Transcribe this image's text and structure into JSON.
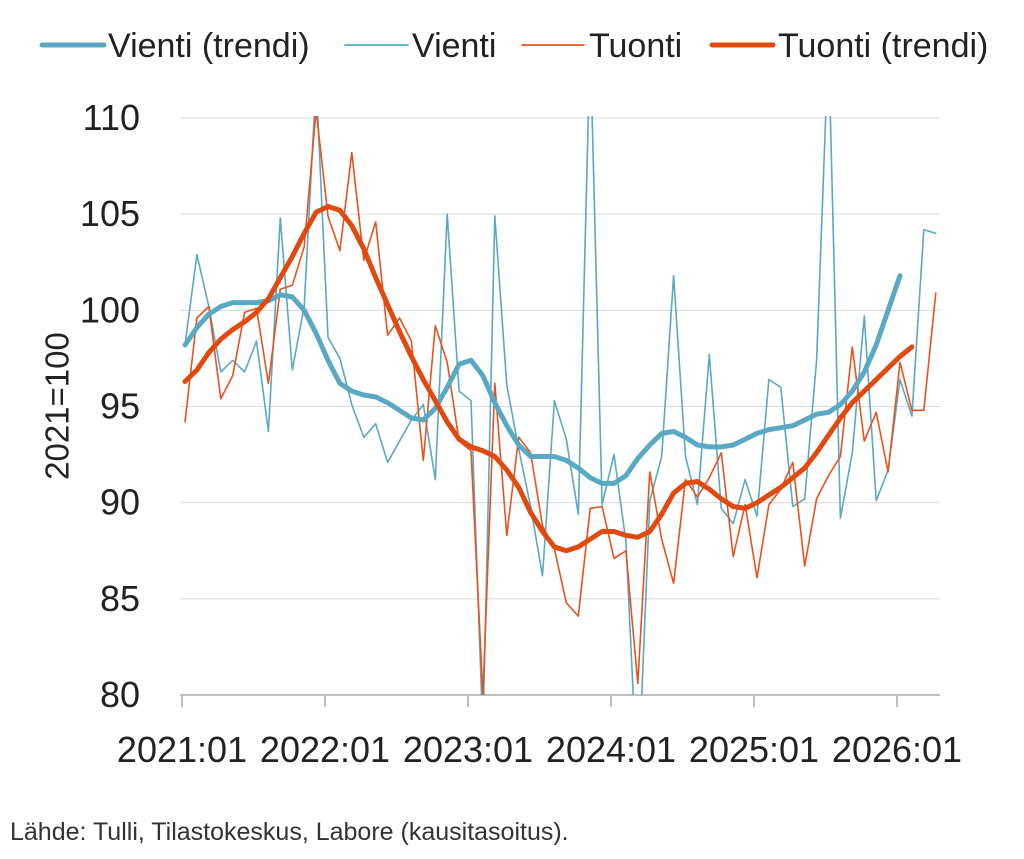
{
  "chart_data": {
    "type": "line",
    "title": "",
    "xlabel": "",
    "ylabel": "2021=100",
    "ylim": [
      80,
      110
    ],
    "y_ticks": [
      "80",
      "85",
      "90",
      "95",
      "100",
      "105",
      "110"
    ],
    "x_ticks": [
      "2021:01",
      "2022:01",
      "2023:01",
      "2024:01",
      "2025:01",
      "2026:01"
    ],
    "grid": "horizontal",
    "legend_position": "top",
    "x_start": "2021-01",
    "series": [
      {
        "name": "Vienti (trendi)",
        "color": "#5aa9c3",
        "style": "thick",
        "values": [
          98.2,
          99.1,
          99.8,
          100.2,
          100.4,
          100.4,
          100.4,
          100.5,
          100.8,
          100.7,
          100.0,
          98.8,
          97.4,
          96.2,
          95.8,
          95.6,
          95.5,
          95.2,
          94.8,
          94.4,
          94.3,
          94.9,
          96.0,
          97.2,
          97.4,
          96.6,
          95.2,
          94.0,
          93.0,
          92.4,
          92.4,
          92.4,
          92.2,
          91.8,
          91.3,
          91.0,
          91.0,
          91.4,
          92.3,
          93.0,
          93.6,
          93.7,
          93.4,
          93.0,
          92.9,
          92.9,
          93.0,
          93.3,
          93.6,
          93.8,
          93.9,
          94.0,
          94.3,
          94.6,
          94.7,
          95.1,
          95.8,
          96.8,
          98.2,
          100.0,
          101.8
        ]
      },
      {
        "name": "Vienti",
        "color": "#5aa9c3",
        "style": "thin",
        "values": [
          98.2,
          102.9,
          100.2,
          96.8,
          97.4,
          96.8,
          98.4,
          93.7,
          104.8,
          96.9,
          100.2,
          112.0,
          98.6,
          97.5,
          95.1,
          93.4,
          94.1,
          92.1,
          93.2,
          94.3,
          95.1,
          91.2,
          105.0,
          95.8,
          95.3,
          78.0,
          104.9,
          96.1,
          92.8,
          89.8,
          86.2,
          95.3,
          93.3,
          89.4,
          114.0,
          89.9,
          92.5,
          88.0,
          75.0,
          90.1,
          92.4,
          101.8,
          92.4,
          89.9,
          97.7,
          89.7,
          88.9,
          91.2,
          89.3,
          96.4,
          96.0,
          89.8,
          90.2,
          97.4,
          114.0,
          89.2,
          92.6,
          99.7,
          90.1,
          91.7,
          96.4,
          94.5,
          104.2,
          104.0
        ]
      },
      {
        "name": "Tuonti",
        "color": "#e8521f",
        "style": "thin",
        "values": [
          94.2,
          99.6,
          100.2,
          95.4,
          96.6,
          99.9,
          100.1,
          96.2,
          101.1,
          101.3,
          103.3,
          110.4,
          104.9,
          103.1,
          108.2,
          102.6,
          104.6,
          98.7,
          99.6,
          98.4,
          92.2,
          99.2,
          97.3,
          93.2,
          92.7,
          80.0,
          96.2,
          88.3,
          93.4,
          92.6,
          88.8,
          87.6,
          84.8,
          84.1,
          89.7,
          89.8,
          87.1,
          87.5,
          80.6,
          91.6,
          88.1,
          85.8,
          91.2,
          90.3,
          91.3,
          92.6,
          87.2,
          89.9,
          86.1,
          89.9,
          90.7,
          92.1,
          86.7,
          90.2,
          91.4,
          92.4,
          98.1,
          93.2,
          94.7,
          91.6,
          97.3,
          94.8,
          94.8,
          100.9
        ]
      },
      {
        "name": "Tuonti (trendi)",
        "color": "#e04a10",
        "style": "thick",
        "values": [
          96.3,
          96.9,
          97.8,
          98.5,
          99.0,
          99.4,
          99.9,
          100.6,
          101.7,
          102.8,
          104.0,
          105.1,
          105.4,
          105.2,
          104.4,
          103.2,
          101.7,
          100.3,
          98.9,
          97.6,
          96.4,
          95.3,
          94.2,
          93.3,
          92.9,
          92.7,
          92.4,
          91.7,
          90.8,
          89.5,
          88.5,
          87.7,
          87.5,
          87.7,
          88.1,
          88.5,
          88.5,
          88.3,
          88.2,
          88.5,
          89.4,
          90.5,
          91.0,
          91.1,
          90.7,
          90.2,
          89.8,
          89.7,
          90.0,
          90.4,
          90.8,
          91.3,
          91.8,
          92.6,
          93.5,
          94.4,
          95.2,
          95.8,
          96.4,
          97.0,
          97.6,
          98.1
        ]
      }
    ]
  },
  "source_note": "Lähde: Tulli, Tilastokeskus, Labore (kausitasoitus)."
}
